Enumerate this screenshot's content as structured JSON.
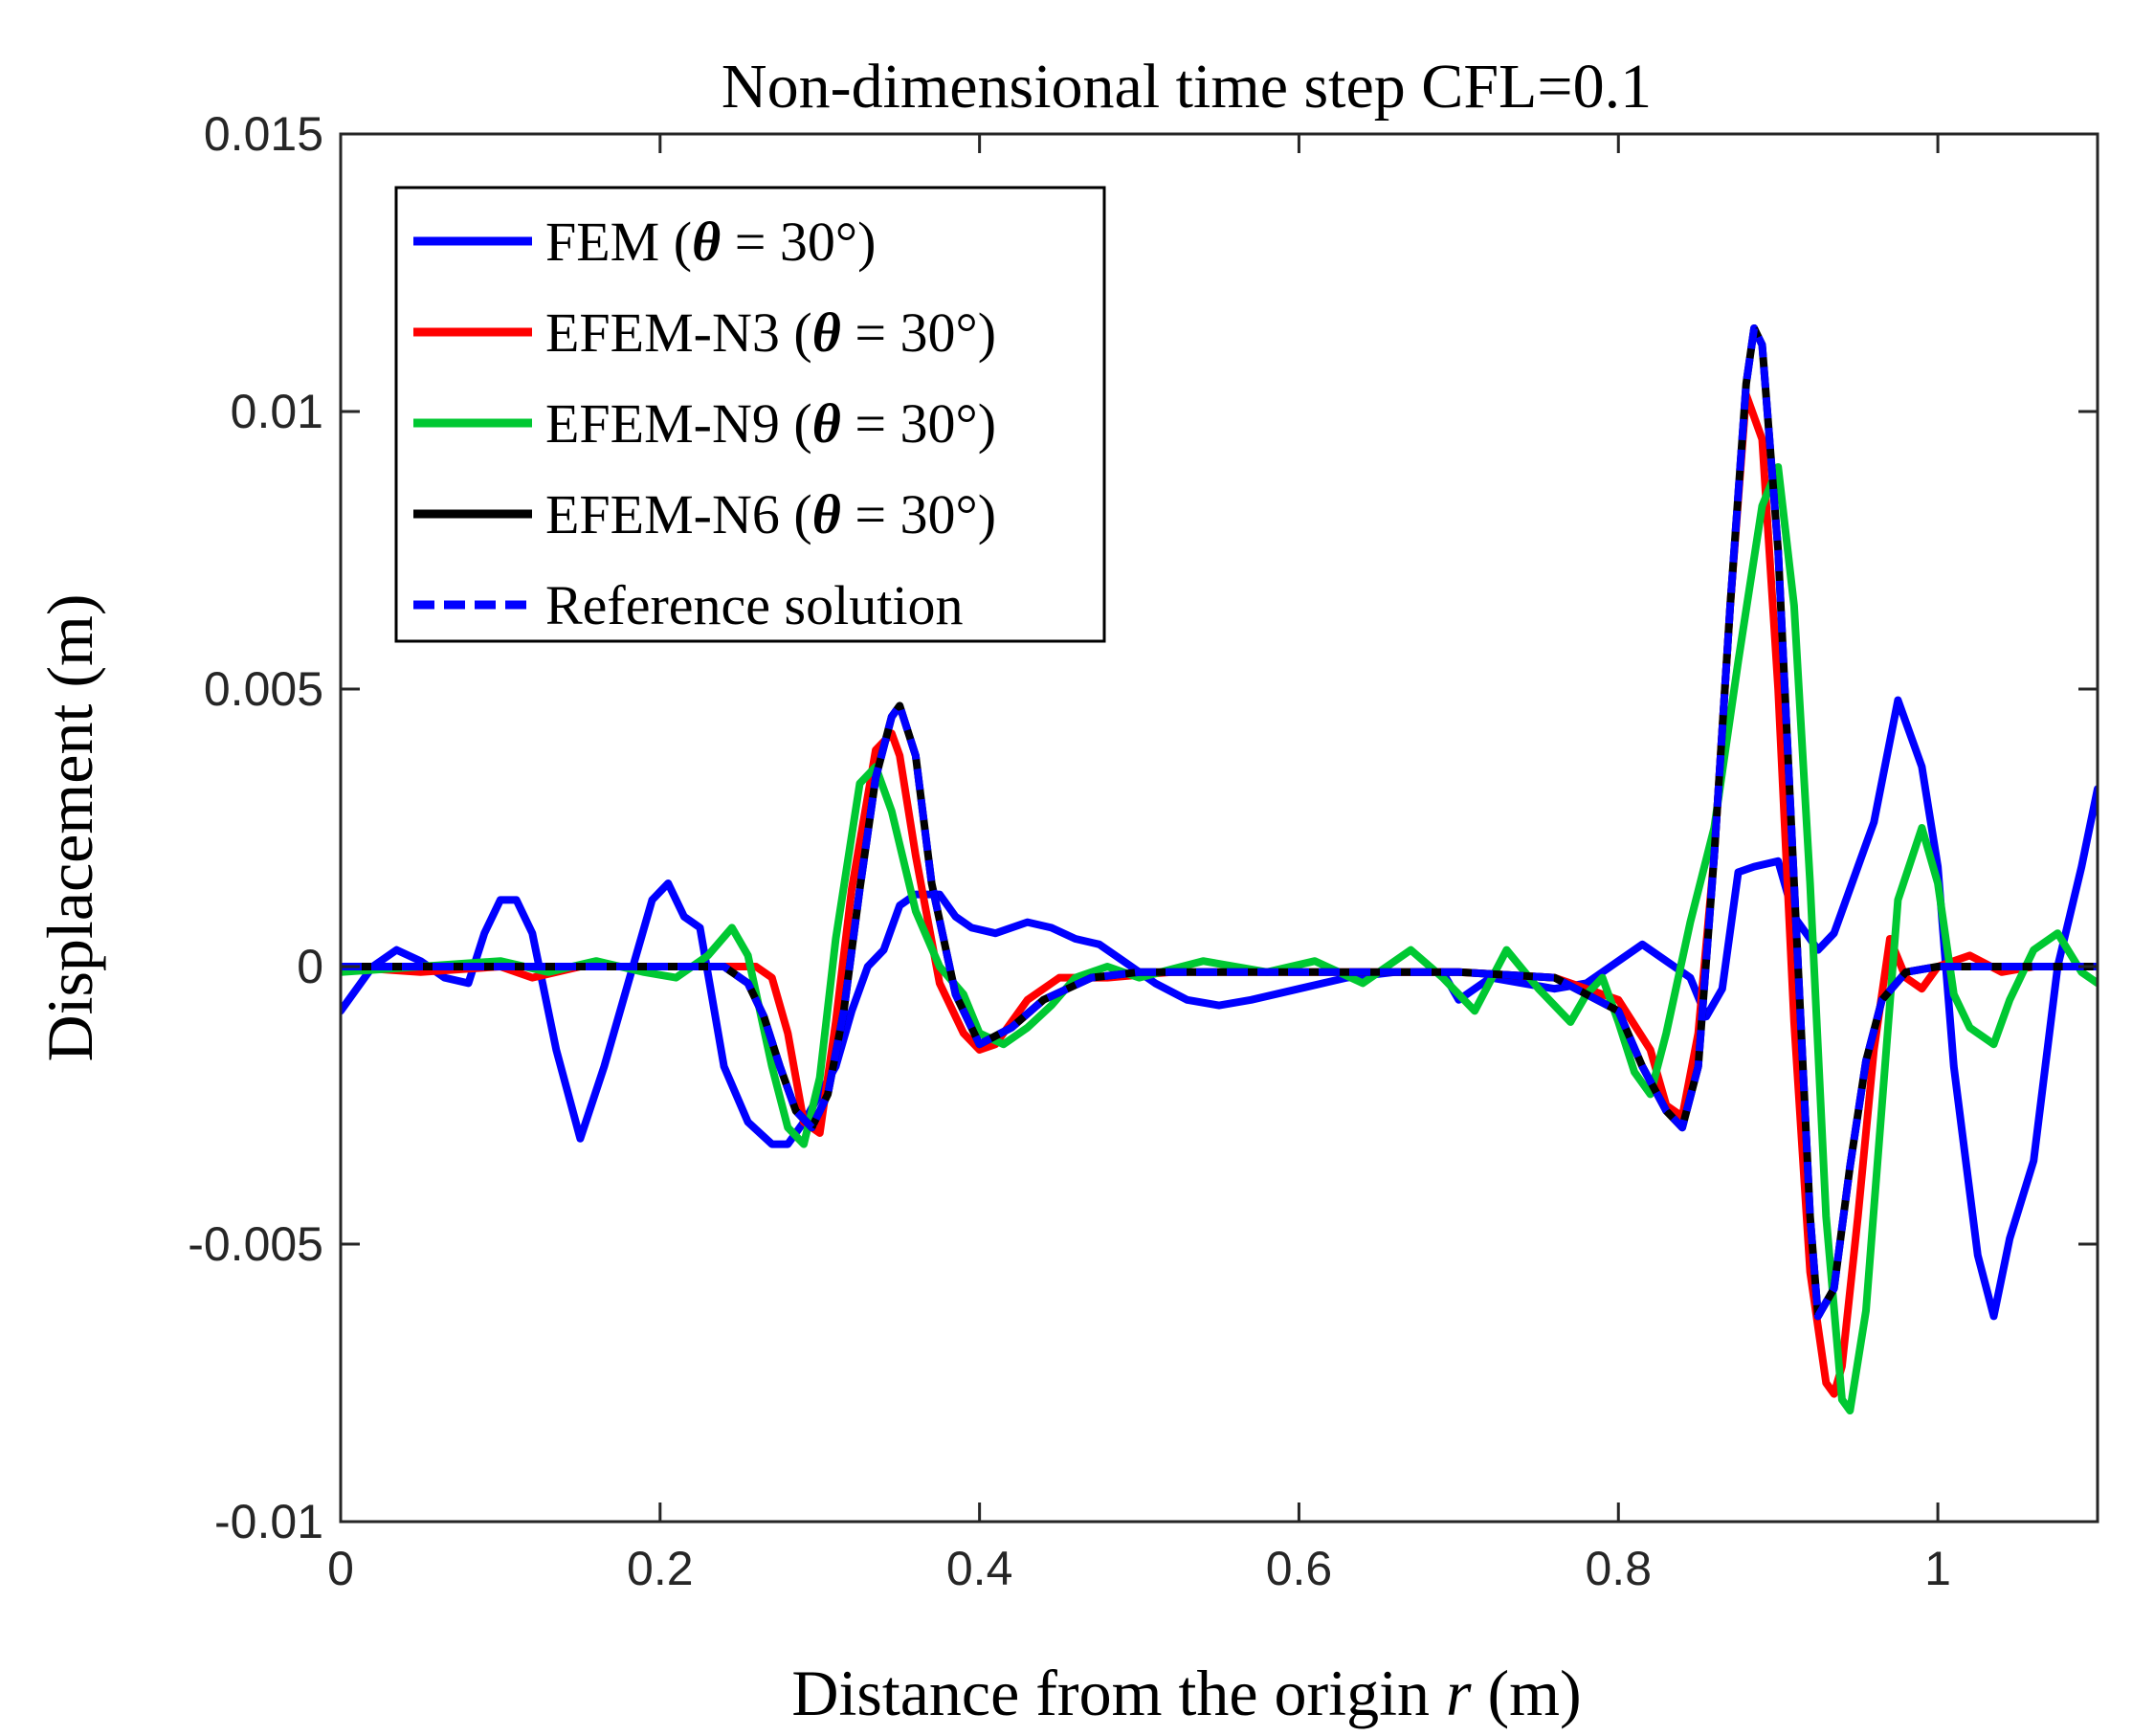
{
  "chart_data": {
    "type": "line",
    "title": "Non-dimensional time step CFL=0.1",
    "xlabel": "Distance from the origin",
    "xlabel_var": "r",
    "xlabel_unit": "(m)",
    "ylabel": "Displacement (m)",
    "xlim": [
      0,
      1.1
    ],
    "ylim": [
      -0.01,
      0.015
    ],
    "xticks": [
      0,
      0.2,
      0.4,
      0.6,
      0.8,
      1
    ],
    "xtick_labels": [
      "0",
      "0.2",
      "0.4",
      "0.6",
      "0.8",
      "1"
    ],
    "yticks": [
      -0.01,
      -0.005,
      0,
      0.005,
      0.01,
      0.015
    ],
    "ytick_labels": [
      "-0.01",
      "-0.005",
      "0",
      "0.005",
      "0.01",
      "0.015"
    ],
    "legend_position": "top-left",
    "series": [
      {
        "name": "FEM",
        "legend_suffix": " = 30°)",
        "color": "#0000ff",
        "dashed": false,
        "x": [
          0,
          0.02,
          0.035,
          0.05,
          0.065,
          0.08,
          0.09,
          0.1,
          0.11,
          0.12,
          0.135,
          0.15,
          0.165,
          0.18,
          0.195,
          0.205,
          0.215,
          0.225,
          0.24,
          0.255,
          0.27,
          0.28,
          0.29,
          0.3,
          0.31,
          0.32,
          0.33,
          0.34,
          0.35,
          0.36,
          0.375,
          0.385,
          0.395,
          0.41,
          0.43,
          0.445,
          0.46,
          0.475,
          0.49,
          0.51,
          0.53,
          0.55,
          0.57,
          0.6,
          0.63,
          0.66,
          0.69,
          0.7,
          0.72,
          0.74,
          0.76,
          0.78,
          0.8,
          0.815,
          0.83,
          0.845,
          0.855,
          0.865,
          0.875,
          0.885,
          0.9,
          0.91,
          0.925,
          0.935,
          0.95,
          0.96,
          0.975,
          0.99,
          1.0,
          1.01,
          1.025,
          1.035,
          1.045,
          1.06,
          1.075,
          1.09,
          1.1
        ],
        "y": [
          -0.0008,
          0.0,
          0.0003,
          0.0001,
          -0.0002,
          -0.0003,
          0.0006,
          0.0012,
          0.0012,
          0.0006,
          -0.0015,
          -0.0031,
          -0.0018,
          -0.0003,
          0.0012,
          0.0015,
          0.0009,
          0.0007,
          -0.0018,
          -0.0028,
          -0.0032,
          -0.0032,
          -0.0028,
          -0.0023,
          -0.0018,
          -0.0008,
          0.0,
          0.0003,
          0.0011,
          0.0013,
          0.0013,
          0.0009,
          0.0007,
          0.0006,
          0.0008,
          0.0007,
          0.0005,
          0.0004,
          0.0001,
          -0.0003,
          -0.0006,
          -0.0007,
          -0.0006,
          -0.0004,
          -0.0002,
          -0.0001,
          -0.0001,
          -0.0006,
          -0.0002,
          -0.0003,
          -0.0004,
          -0.0003,
          0.0001,
          0.0004,
          0.0001,
          -0.0002,
          -0.0009,
          -0.0004,
          0.0017,
          0.0018,
          0.0019,
          0.0009,
          0.0003,
          0.0006,
          0.0018,
          0.0026,
          0.0048,
          0.0036,
          0.0018,
          -0.0018,
          -0.0052,
          -0.0063,
          -0.0049,
          -0.0035,
          0.0,
          0.0018,
          0.0032
        ]
      },
      {
        "name": "EFEM-N3",
        "legend_suffix": " = 30°)",
        "color": "#ff0000",
        "dashed": false,
        "x": [
          0,
          0.05,
          0.1,
          0.12,
          0.15,
          0.2,
          0.24,
          0.26,
          0.27,
          0.28,
          0.29,
          0.3,
          0.31,
          0.32,
          0.335,
          0.345,
          0.35,
          0.36,
          0.375,
          0.39,
          0.4,
          0.41,
          0.43,
          0.45,
          0.48,
          0.52,
          0.6,
          0.7,
          0.76,
          0.8,
          0.82,
          0.83,
          0.84,
          0.85,
          0.86,
          0.87,
          0.88,
          0.89,
          0.9,
          0.91,
          0.92,
          0.93,
          0.935,
          0.94,
          0.95,
          0.96,
          0.97,
          0.98,
          0.99,
          1.0,
          1.02,
          1.04,
          1.06,
          1.1
        ],
        "y": [
          0.0,
          -0.0001,
          0.0,
          -0.0002,
          0.0,
          0.0,
          0.0,
          0.0,
          -0.0002,
          -0.0012,
          -0.0028,
          -0.003,
          -0.001,
          0.0014,
          0.0039,
          0.0042,
          0.0038,
          0.002,
          -0.0003,
          -0.0012,
          -0.0015,
          -0.0014,
          -0.0006,
          -0.0002,
          -0.0002,
          -0.0001,
          -0.0001,
          -0.0001,
          -0.0002,
          -0.0006,
          -0.0015,
          -0.0025,
          -0.0027,
          -0.0012,
          0.002,
          0.0065,
          0.0103,
          0.0095,
          0.005,
          -0.001,
          -0.0055,
          -0.0075,
          -0.0077,
          -0.0072,
          -0.0045,
          -0.0015,
          0.0005,
          -0.0002,
          -0.0004,
          0.0,
          0.0002,
          -0.0001,
          0.0,
          0.0
        ]
      },
      {
        "name": "EFEM-N9",
        "legend_suffix": " = 30°)",
        "color": "#00c832",
        "dashed": false,
        "x": [
          0,
          0.05,
          0.1,
          0.13,
          0.16,
          0.19,
          0.21,
          0.23,
          0.245,
          0.255,
          0.27,
          0.28,
          0.29,
          0.3,
          0.31,
          0.325,
          0.335,
          0.345,
          0.36,
          0.375,
          0.39,
          0.4,
          0.415,
          0.43,
          0.445,
          0.46,
          0.48,
          0.5,
          0.54,
          0.58,
          0.61,
          0.64,
          0.67,
          0.69,
          0.71,
          0.73,
          0.75,
          0.77,
          0.78,
          0.79,
          0.8,
          0.81,
          0.82,
          0.83,
          0.845,
          0.86,
          0.875,
          0.89,
          0.9,
          0.91,
          0.92,
          0.93,
          0.94,
          0.945,
          0.955,
          0.965,
          0.975,
          0.99,
          1.0,
          1.01,
          1.02,
          1.035,
          1.045,
          1.06,
          1.075,
          1.09,
          1.1
        ],
        "y": [
          -0.0001,
          0.0,
          0.0001,
          -0.0001,
          0.0001,
          -0.0001,
          -0.0002,
          0.0002,
          0.0007,
          0.0002,
          -0.0018,
          -0.0029,
          -0.0032,
          -0.002,
          0.0005,
          0.0033,
          0.0036,
          0.0028,
          0.001,
          0.0,
          -0.0005,
          -0.0012,
          -0.0014,
          -0.0011,
          -0.0007,
          -0.0002,
          0.0,
          -0.0002,
          0.0001,
          -0.0001,
          0.0001,
          -0.0003,
          0.0003,
          -0.0002,
          -0.0008,
          0.0003,
          -0.0004,
          -0.001,
          -0.0005,
          -0.0002,
          -0.001,
          -0.0019,
          -0.0023,
          -0.0012,
          0.0008,
          0.0025,
          0.0055,
          0.0083,
          0.009,
          0.0065,
          0.0015,
          -0.0045,
          -0.0078,
          -0.008,
          -0.0062,
          -0.0025,
          0.0012,
          0.0025,
          0.0015,
          -0.0005,
          -0.0011,
          -0.0014,
          -0.0006,
          0.0003,
          0.0006,
          -0.0001,
          -0.0003
        ]
      },
      {
        "name": "EFEM-N6",
        "legend_suffix": " = 30°)",
        "color": "#000000",
        "dashed": false,
        "x": [
          0,
          0.05,
          0.1,
          0.15,
          0.2,
          0.24,
          0.255,
          0.265,
          0.275,
          0.285,
          0.295,
          0.305,
          0.315,
          0.325,
          0.335,
          0.345,
          0.35,
          0.36,
          0.37,
          0.385,
          0.4,
          0.42,
          0.44,
          0.47,
          0.5,
          0.6,
          0.7,
          0.76,
          0.8,
          0.815,
          0.83,
          0.84,
          0.85,
          0.86,
          0.87,
          0.88,
          0.885,
          0.89,
          0.9,
          0.91,
          0.92,
          0.925,
          0.935,
          0.945,
          0.955,
          0.965,
          0.98,
          1.0,
          1.05,
          1.1
        ],
        "y": [
          0.0,
          0.0,
          0.0,
          0.0,
          0.0,
          0.0,
          -0.0003,
          -0.0009,
          -0.0018,
          -0.0026,
          -0.0029,
          -0.0023,
          -0.0008,
          0.0014,
          0.0034,
          0.0045,
          0.0047,
          0.0038,
          0.0015,
          -0.0005,
          -0.0014,
          -0.0011,
          -0.0006,
          -0.0002,
          -0.0001,
          -0.0001,
          -0.0001,
          -0.0002,
          -0.0008,
          -0.0018,
          -0.0026,
          -0.0029,
          -0.0018,
          0.002,
          0.0065,
          0.0105,
          0.0115,
          0.0112,
          0.0075,
          0.0015,
          -0.0045,
          -0.0063,
          -0.0058,
          -0.0036,
          -0.0017,
          -0.0006,
          -0.0001,
          0.0,
          0.0,
          0.0
        ]
      },
      {
        "name": "Reference solution",
        "legend_suffix": "",
        "color": "#0000ff",
        "dashed": true,
        "x": [
          0,
          0.05,
          0.1,
          0.15,
          0.2,
          0.24,
          0.255,
          0.265,
          0.275,
          0.285,
          0.295,
          0.305,
          0.315,
          0.325,
          0.335,
          0.345,
          0.35,
          0.36,
          0.37,
          0.385,
          0.4,
          0.42,
          0.44,
          0.47,
          0.5,
          0.6,
          0.7,
          0.76,
          0.8,
          0.815,
          0.83,
          0.84,
          0.85,
          0.86,
          0.87,
          0.88,
          0.885,
          0.89,
          0.9,
          0.91,
          0.92,
          0.925,
          0.935,
          0.945,
          0.955,
          0.965,
          0.98,
          1.0,
          1.05,
          1.1
        ],
        "y": [
          0.0,
          0.0,
          0.0,
          0.0,
          0.0,
          0.0,
          -0.0003,
          -0.0009,
          -0.0018,
          -0.0026,
          -0.0029,
          -0.0023,
          -0.0008,
          0.0014,
          0.0034,
          0.0045,
          0.0047,
          0.0038,
          0.0015,
          -0.0005,
          -0.0014,
          -0.0011,
          -0.0006,
          -0.0002,
          -0.0001,
          -0.0001,
          -0.0001,
          -0.0002,
          -0.0008,
          -0.0018,
          -0.0026,
          -0.0029,
          -0.0018,
          0.002,
          0.0065,
          0.0105,
          0.0115,
          0.0112,
          0.0075,
          0.0015,
          -0.0045,
          -0.0063,
          -0.0058,
          -0.0036,
          -0.0017,
          -0.0006,
          -0.0001,
          0.0,
          0.0,
          0.0
        ]
      }
    ]
  }
}
